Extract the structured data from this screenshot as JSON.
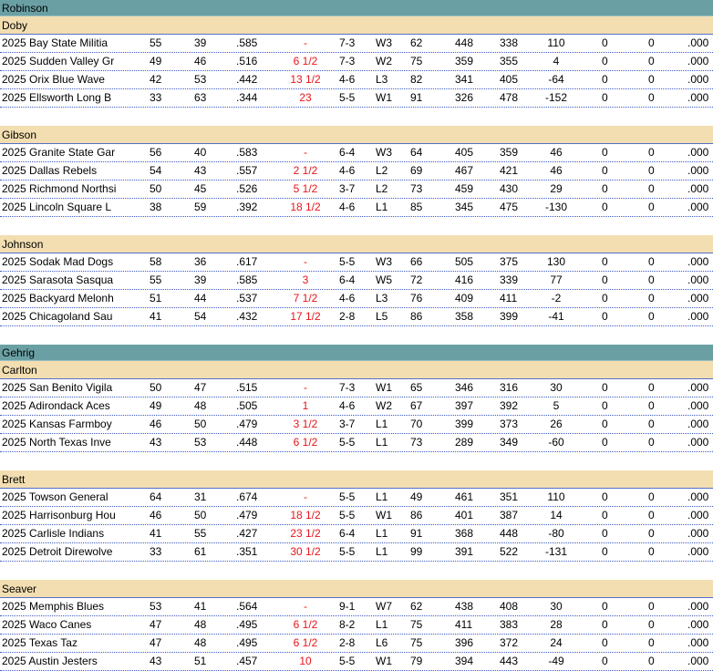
{
  "leagues": [
    {
      "name": "Robinson",
      "divisions": [
        {
          "name": "Doby",
          "teams": [
            {
              "team": "2025 Bay State Militia",
              "w": "55",
              "l": "39",
              "pct": ".585",
              "gb": "-",
              "l10": "7-3",
              "strk": "W3",
              "magic": "62",
              "rs": "448",
              "ra": "338",
              "diff": "110",
              "x1": "0",
              "x2": "0",
              "x3": ".000"
            },
            {
              "team": "2025 Sudden Valley Gr",
              "w": "49",
              "l": "46",
              "pct": ".516",
              "gb": "6 1/2",
              "l10": "7-3",
              "strk": "W2",
              "magic": "75",
              "rs": "359",
              "ra": "355",
              "diff": "4",
              "x1": "0",
              "x2": "0",
              "x3": ".000"
            },
            {
              "team": "2025 Orix  Blue Wave",
              "w": "42",
              "l": "53",
              "pct": ".442",
              "gb": "13 1/2",
              "l10": "4-6",
              "strk": "L3",
              "magic": "82",
              "rs": "341",
              "ra": "405",
              "diff": "-64",
              "x1": "0",
              "x2": "0",
              "x3": ".000"
            },
            {
              "team": "2025 Ellsworth Long B",
              "w": "33",
              "l": "63",
              "pct": ".344",
              "gb": "23",
              "l10": "5-5",
              "strk": "W1",
              "magic": "91",
              "rs": "326",
              "ra": "478",
              "diff": "-152",
              "x1": "0",
              "x2": "0",
              "x3": ".000"
            }
          ]
        },
        {
          "name": "Gibson",
          "teams": [
            {
              "team": "2025 Granite State Gar",
              "w": "56",
              "l": "40",
              "pct": ".583",
              "gb": "-",
              "l10": "6-4",
              "strk": "W3",
              "magic": "64",
              "rs": "405",
              "ra": "359",
              "diff": "46",
              "x1": "0",
              "x2": "0",
              "x3": ".000"
            },
            {
              "team": "2025 Dallas Rebels",
              "w": "54",
              "l": "43",
              "pct": ".557",
              "gb": "2 1/2",
              "l10": "4-6",
              "strk": "L2",
              "magic": "69",
              "rs": "467",
              "ra": "421",
              "diff": "46",
              "x1": "0",
              "x2": "0",
              "x3": ".000"
            },
            {
              "team": "2025 Richmond Northsi",
              "w": "50",
              "l": "45",
              "pct": ".526",
              "gb": "5 1/2",
              "l10": "3-7",
              "strk": "L2",
              "magic": "73",
              "rs": "459",
              "ra": "430",
              "diff": "29",
              "x1": "0",
              "x2": "0",
              "x3": ".000"
            },
            {
              "team": "2025 Lincoln Square L",
              "w": "38",
              "l": "59",
              "pct": ".392",
              "gb": "18 1/2",
              "l10": "4-6",
              "strk": "L1",
              "magic": "85",
              "rs": "345",
              "ra": "475",
              "diff": "-130",
              "x1": "0",
              "x2": "0",
              "x3": ".000"
            }
          ]
        },
        {
          "name": "Johnson",
          "teams": [
            {
              "team": "2025 Sodak Mad Dogs",
              "w": "58",
              "l": "36",
              "pct": ".617",
              "gb": "-",
              "l10": "5-5",
              "strk": "W3",
              "magic": "66",
              "rs": "505",
              "ra": "375",
              "diff": "130",
              "x1": "0",
              "x2": "0",
              "x3": ".000"
            },
            {
              "team": "2025 Sarasota Sasqua",
              "w": "55",
              "l": "39",
              "pct": ".585",
              "gb": "3",
              "l10": "6-4",
              "strk": "W5",
              "magic": "72",
              "rs": "416",
              "ra": "339",
              "diff": "77",
              "x1": "0",
              "x2": "0",
              "x3": ".000"
            },
            {
              "team": "2025 Backyard Melonh",
              "w": "51",
              "l": "44",
              "pct": ".537",
              "gb": "7 1/2",
              "l10": "4-6",
              "strk": "L3",
              "magic": "76",
              "rs": "409",
              "ra": "411",
              "diff": "-2",
              "x1": "0",
              "x2": "0",
              "x3": ".000"
            },
            {
              "team": "2025 Chicagoland Sau",
              "w": "41",
              "l": "54",
              "pct": ".432",
              "gb": "17 1/2",
              "l10": "2-8",
              "strk": "L5",
              "magic": "86",
              "rs": "358",
              "ra": "399",
              "diff": "-41",
              "x1": "0",
              "x2": "0",
              "x3": ".000"
            }
          ]
        }
      ]
    },
    {
      "name": "Gehrig",
      "divisions": [
        {
          "name": "Carlton",
          "teams": [
            {
              "team": "2025 San Benito Vigila",
              "w": "50",
              "l": "47",
              "pct": ".515",
              "gb": "-",
              "l10": "7-3",
              "strk": "W1",
              "magic": "65",
              "rs": "346",
              "ra": "316",
              "diff": "30",
              "x1": "0",
              "x2": "0",
              "x3": ".000"
            },
            {
              "team": "2025 Adirondack Aces",
              "w": "49",
              "l": "48",
              "pct": ".505",
              "gb": "1",
              "l10": "4-6",
              "strk": "W2",
              "magic": "67",
              "rs": "397",
              "ra": "392",
              "diff": "5",
              "x1": "0",
              "x2": "0",
              "x3": ".000"
            },
            {
              "team": "2025 Kansas Farmboy",
              "w": "46",
              "l": "50",
              "pct": ".479",
              "gb": "3 1/2",
              "l10": "3-7",
              "strk": "L1",
              "magic": "70",
              "rs": "399",
              "ra": "373",
              "diff": "26",
              "x1": "0",
              "x2": "0",
              "x3": ".000"
            },
            {
              "team": "2025 North Texas Inve",
              "w": "43",
              "l": "53",
              "pct": ".448",
              "gb": "6 1/2",
              "l10": "5-5",
              "strk": "L1",
              "magic": "73",
              "rs": "289",
              "ra": "349",
              "diff": "-60",
              "x1": "0",
              "x2": "0",
              "x3": ".000"
            }
          ]
        },
        {
          "name": "Brett",
          "teams": [
            {
              "team": "2025 Towson  General",
              "w": "64",
              "l": "31",
              "pct": ".674",
              "gb": "-",
              "l10": "5-5",
              "strk": "L1",
              "magic": "49",
              "rs": "461",
              "ra": "351",
              "diff": "110",
              "x1": "0",
              "x2": "0",
              "x3": ".000"
            },
            {
              "team": "2025 Harrisonburg Hou",
              "w": "46",
              "l": "50",
              "pct": ".479",
              "gb": "18 1/2",
              "l10": "5-5",
              "strk": "W1",
              "magic": "86",
              "rs": "401",
              "ra": "387",
              "diff": "14",
              "x1": "0",
              "x2": "0",
              "x3": ".000"
            },
            {
              "team": "2025 Carlisle Indians",
              "w": "41",
              "l": "55",
              "pct": ".427",
              "gb": "23 1/2",
              "l10": "6-4",
              "strk": "L1",
              "magic": "91",
              "rs": "368",
              "ra": "448",
              "diff": "-80",
              "x1": "0",
              "x2": "0",
              "x3": ".000"
            },
            {
              "team": "2025 Detroit Direwolve",
              "w": "33",
              "l": "61",
              "pct": ".351",
              "gb": "30 1/2",
              "l10": "5-5",
              "strk": "L1",
              "magic": "99",
              "rs": "391",
              "ra": "522",
              "diff": "-131",
              "x1": "0",
              "x2": "0",
              "x3": ".000"
            }
          ]
        },
        {
          "name": "Seaver",
          "teams": [
            {
              "team": "2025 Memphis Blues",
              "w": "53",
              "l": "41",
              "pct": ".564",
              "gb": "-",
              "l10": "9-1",
              "strk": "W7",
              "magic": "62",
              "rs": "438",
              "ra": "408",
              "diff": "30",
              "x1": "0",
              "x2": "0",
              "x3": ".000"
            },
            {
              "team": "2025 Waco Canes",
              "w": "47",
              "l": "48",
              "pct": ".495",
              "gb": "6 1/2",
              "l10": "8-2",
              "strk": "L1",
              "magic": "75",
              "rs": "411",
              "ra": "383",
              "diff": "28",
              "x1": "0",
              "x2": "0",
              "x3": ".000"
            },
            {
              "team": "2025 Texas Taz",
              "w": "47",
              "l": "48",
              "pct": ".495",
              "gb": "6 1/2",
              "l10": "2-8",
              "strk": "L6",
              "magic": "75",
              "rs": "396",
              "ra": "372",
              "diff": "24",
              "x1": "0",
              "x2": "0",
              "x3": ".000"
            },
            {
              "team": "2025 Austin Jesters",
              "w": "43",
              "l": "51",
              "pct": ".457",
              "gb": "10",
              "l10": "5-5",
              "strk": "W1",
              "magic": "79",
              "rs": "394",
              "ra": "443",
              "diff": "-49",
              "x1": "0",
              "x2": "0",
              "x3": ".000"
            }
          ]
        }
      ]
    }
  ],
  "colors": {
    "league_header_bg": "#6aa0a4",
    "division_header_bg": "#f3deb1",
    "games_behind_text": "#e8141a",
    "row_divider": "#3d5bc4"
  }
}
